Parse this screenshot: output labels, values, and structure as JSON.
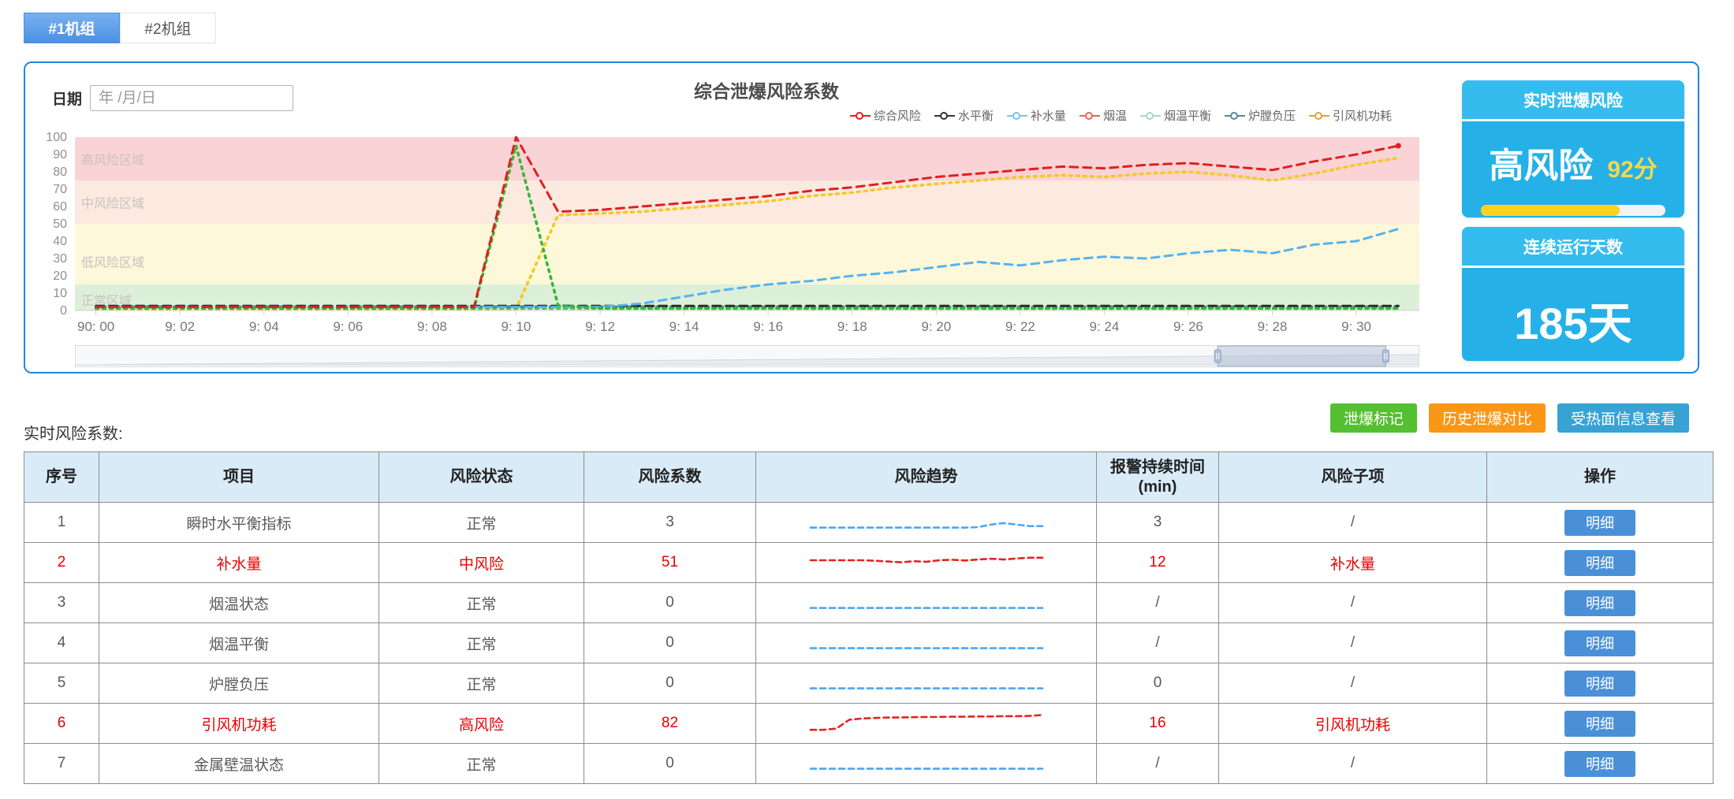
{
  "tabs": [
    {
      "label": "#1机组",
      "active": true
    },
    {
      "label": "#2机组",
      "active": false
    }
  ],
  "panel": {
    "title": "综合泄爆风险系数",
    "date_label": "日期",
    "date_placeholder": "年 /月/日"
  },
  "chart_data": {
    "type": "line",
    "title": "综合泄爆风险系数",
    "ylim": [
      0,
      100
    ],
    "y_ticks": [
      0,
      10,
      20,
      30,
      40,
      50,
      60,
      70,
      80,
      90,
      100
    ],
    "x_tick_labels": [
      "90: 00",
      "9: 02",
      "9: 04",
      "9: 06",
      "9: 08",
      "9: 10",
      "9: 12",
      "9: 14",
      "9: 16",
      "9: 18",
      "9: 20",
      "9: 22",
      "9: 24",
      "9: 26",
      "9: 28",
      "9: 30"
    ],
    "grid": false,
    "legend_position": "top-right",
    "zones": [
      {
        "label": "高风险区域",
        "from": 75,
        "to": 100,
        "color": "#fad3d6",
        "label_v": 87
      },
      {
        "label": "中风险区域",
        "from": 50,
        "to": 75,
        "color": "#fce9e0",
        "label_v": 62
      },
      {
        "label": "低风险区域",
        "from": 15,
        "to": 50,
        "color": "#fcf8d9",
        "label_v": 28
      },
      {
        "label": "正常区域",
        "from": 0,
        "to": 15,
        "color": "#dcefd8",
        "label_v": 6
      }
    ],
    "legend": [
      {
        "label": "综合风险",
        "color": "#e01f1f"
      },
      {
        "label": "水平衡",
        "color": "#333333"
      },
      {
        "label": "补水量",
        "color": "#79c2ef"
      },
      {
        "label": "烟温",
        "color": "#e06a50"
      },
      {
        "label": "烟温平衡",
        "color": "#a8d8c0"
      },
      {
        "label": "炉膛负压",
        "color": "#5a8a96"
      },
      {
        "label": "引风机功耗",
        "color": "#d9a53c"
      }
    ],
    "series": [
      {
        "name": "引风机功耗",
        "color": "#f5c920",
        "dash": "dotted",
        "values": [
          0.9,
          0.9,
          0.9,
          0.9,
          0.9,
          0.9,
          0.9,
          0.9,
          0.9,
          0.9,
          0.9,
          55,
          56,
          57,
          59,
          61,
          63,
          66,
          68,
          71,
          73,
          75,
          77,
          78,
          77,
          79,
          80,
          78,
          75,
          79,
          84,
          88
        ]
      },
      {
        "name": "烟温平衡",
        "color": "#52c452",
        "dash": "dotted",
        "values": [
          1.2,
          1.2,
          1.2,
          1.2,
          1.2,
          1.2,
          1.2,
          1.2,
          1.2,
          1.2,
          1.2,
          1.2,
          1.2,
          1.2,
          1.2,
          1.2,
          1.2,
          1.2,
          1.2,
          1.2,
          1.2,
          1.2,
          1.2,
          1.2,
          1.2,
          1.2,
          1.2,
          1.2,
          1.2,
          1.2,
          1.2,
          1.2
        ]
      },
      {
        "name": "炉膛负压",
        "color": "#4a8a94",
        "dash": "dotted",
        "values": [
          2.1,
          2.1,
          2.1,
          2.1,
          2.1,
          2.1,
          2.1,
          2.1,
          2.1,
          2.1,
          2.1,
          2.1,
          2.1,
          2.1,
          2.1,
          2.1,
          2.1,
          2.1,
          2.1,
          2.1,
          2.1,
          2.1,
          2.1,
          2.1,
          2.1,
          2.1,
          2.1,
          2.1,
          2.1,
          2.1,
          2.1,
          2.1
        ]
      },
      {
        "name": "水平衡",
        "color": "#2b2b2b",
        "dash": "dashed",
        "values": [
          2.6,
          2.6,
          2.6,
          2.6,
          2.6,
          2.6,
          2.6,
          2.6,
          2.6,
          2.6,
          2.6,
          2.6,
          2.6,
          2.6,
          2.6,
          2.6,
          2.6,
          2.6,
          2.6,
          2.6,
          2.6,
          2.6,
          2.6,
          2.6,
          2.6,
          2.6,
          2.6,
          2.6,
          2.6,
          2.6,
          2.6,
          2.6
        ]
      },
      {
        "name": "补水量",
        "color": "#58b2f2",
        "dash": "dashed",
        "values": [
          2,
          2,
          2,
          2,
          2,
          2,
          2,
          2,
          2,
          2,
          2,
          2,
          2,
          4,
          8,
          12,
          15,
          17,
          20,
          22,
          25,
          28,
          26,
          29,
          31,
          30,
          33,
          35,
          33,
          38,
          40,
          47
        ]
      },
      {
        "name": "烟温",
        "color": "#35b834",
        "dash": "dotted",
        "values": [
          1.2,
          1.2,
          1.2,
          1.2,
          1.2,
          1.2,
          1.2,
          1.2,
          1.2,
          1.2,
          95,
          3,
          1.2,
          1.2,
          1.2,
          1.2,
          1.2,
          1.2,
          1.2,
          1.2,
          1.2,
          1.2,
          1.2,
          1.2,
          1.2,
          1.2,
          1.2,
          1.2,
          1.2,
          1.2,
          1.2,
          1.2
        ]
      },
      {
        "name": "综合风险",
        "color": "#e01f1f",
        "dash": "dashed",
        "values": [
          2,
          2,
          2,
          2,
          2,
          2,
          2,
          2,
          2,
          2,
          100,
          57,
          58,
          60,
          62,
          64,
          66,
          69,
          71,
          74,
          77,
          79,
          81,
          83,
          82,
          84,
          85,
          83,
          81,
          86,
          90,
          95
        ]
      }
    ],
    "datazoom": {
      "window_start_pct": 85,
      "window_end_pct": 97.5
    }
  },
  "cards": {
    "realtime": {
      "header": "实时泄爆风险",
      "risk_label": "高风险",
      "score": "92分",
      "progress_pct": 75
    },
    "days": {
      "header": "连续运行天数",
      "value": "185天"
    }
  },
  "table_section": {
    "label": "实时风险系数:",
    "buttons": [
      {
        "label": "泄爆标记",
        "color": "#55bf32",
        "name": "mark-explosion-button"
      },
      {
        "label": "历史泄爆对比",
        "color": "#fa9716",
        "name": "history-compare-button"
      },
      {
        "label": "受热面信息查看",
        "color": "#38a2d5",
        "name": "heating-surface-info-button"
      }
    ],
    "headers": [
      "序号",
      "项目",
      "风险状态",
      "风险系数",
      "风险趋势",
      "报警持续时间 (min)",
      "风险子项",
      "操作"
    ],
    "detail_label": "明细",
    "rows": [
      {
        "no": "1",
        "item": "瞬时水平衡指标",
        "status": "正常",
        "coef": "3",
        "alarm": "3",
        "sub": "/",
        "alert": false,
        "spark": {
          "color": "#4da6f0",
          "values": [
            2,
            2,
            2,
            2,
            2,
            2,
            2,
            2,
            2,
            2,
            2,
            2,
            2,
            2.2,
            3.2,
            3.8,
            3.2,
            2.6,
            2.6
          ]
        }
      },
      {
        "no": "2",
        "item": "补水量",
        "status": "中风险",
        "coef": "51",
        "alarm": "12",
        "sub": "补水量",
        "alert": true,
        "spark": {
          "color": "#e62222",
          "values": [
            5,
            5,
            5,
            5,
            5,
            4.8,
            4.5,
            4.2,
            4.6,
            4.4,
            5,
            5.2,
            4.9,
            5.3,
            5.6,
            5.3,
            5.7,
            6,
            6
          ]
        }
      },
      {
        "no": "3",
        "item": "烟温状态",
        "status": "正常",
        "coef": "0",
        "alarm": "/",
        "sub": "/",
        "alert": false,
        "spark": {
          "color": "#4da6f0",
          "values": [
            2,
            2,
            2,
            2,
            2,
            2,
            2,
            2,
            2,
            2,
            2,
            2,
            2,
            2,
            2,
            2,
            2,
            2,
            2
          ]
        }
      },
      {
        "no": "4",
        "item": "烟温平衡",
        "status": "正常",
        "coef": "0",
        "alarm": "/",
        "sub": "/",
        "alert": false,
        "spark": {
          "color": "#4da6f0",
          "values": [
            2,
            2,
            2,
            2,
            2,
            2,
            2,
            2,
            2,
            2,
            2,
            2,
            2,
            2,
            2,
            2,
            2,
            2,
            2
          ]
        }
      },
      {
        "no": "5",
        "item": "炉膛负压",
        "status": "正常",
        "coef": "0",
        "alarm": "0",
        "sub": "/",
        "alert": false,
        "spark": {
          "color": "#4da6f0",
          "values": [
            2,
            2,
            2,
            2,
            2,
            2,
            2,
            2,
            2,
            2,
            2,
            2,
            2,
            2,
            2,
            2,
            2,
            2,
            2
          ]
        }
      },
      {
        "no": "6",
        "item": "引风机功耗",
        "status": "高风险",
        "coef": "82",
        "alarm": "16",
        "sub": "引风机功耗",
        "alert": true,
        "spark": {
          "color": "#e62222",
          "values": [
            1.5,
            1.5,
            2,
            5.5,
            6,
            6.2,
            6.4,
            6.4,
            6.5,
            6.6,
            6.6,
            6.7,
            6.7,
            6.8,
            6.8,
            6.9,
            6.9,
            7,
            7.4
          ]
        }
      },
      {
        "no": "7",
        "item": "金属壁温状态",
        "status": "正常",
        "coef": "0",
        "alarm": "/",
        "sub": "/",
        "alert": false,
        "spark": {
          "color": "#4da6f0",
          "values": [
            2,
            2,
            2,
            2,
            2,
            2,
            2,
            2,
            2,
            2,
            2,
            2,
            2,
            2,
            2,
            2,
            2,
            2,
            2
          ]
        }
      }
    ]
  }
}
